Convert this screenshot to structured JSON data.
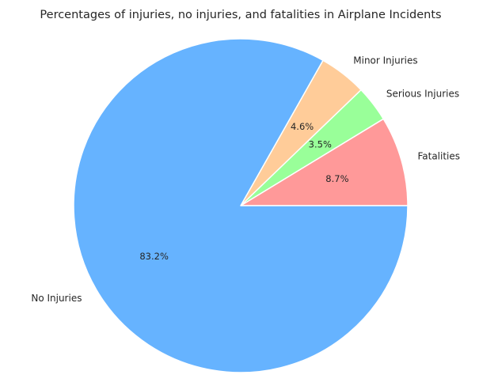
{
  "chart_data": {
    "type": "pie",
    "title": "Percentages of injuries, no injuries, and fatalities in Airplane Incidents",
    "start_angle_deg": 0,
    "direction": "counterclockwise",
    "slices": [
      {
        "label": "Fatalities",
        "value": 8.7,
        "pct_text": "8.7%",
        "color": "#ff9999"
      },
      {
        "label": "Serious Injuries",
        "value": 3.5,
        "pct_text": "3.5%",
        "color": "#99ff99"
      },
      {
        "label": "Minor Injuries",
        "value": 4.6,
        "pct_text": "4.6%",
        "color": "#ffcc99"
      },
      {
        "label": "No Injuries",
        "value": 83.2,
        "pct_text": "83.2%",
        "color": "#66b3ff"
      }
    ]
  }
}
